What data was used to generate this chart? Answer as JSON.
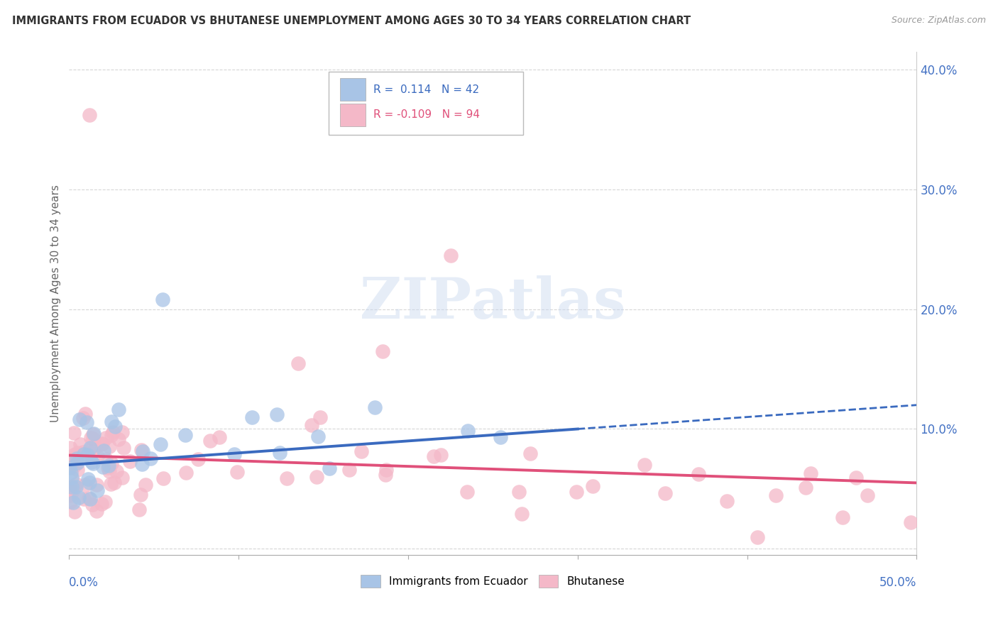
{
  "title": "IMMIGRANTS FROM ECUADOR VS BHUTANESE UNEMPLOYMENT AMONG AGES 30 TO 34 YEARS CORRELATION CHART",
  "source": "Source: ZipAtlas.com",
  "ylabel": "Unemployment Among Ages 30 to 34 years",
  "xlim": [
    0.0,
    0.5
  ],
  "ylim": [
    -0.005,
    0.415
  ],
  "yticks": [
    0.0,
    0.1,
    0.2,
    0.3,
    0.4
  ],
  "ytick_labels": [
    "",
    "10.0%",
    "20.0%",
    "30.0%",
    "40.0%"
  ],
  "series1_label": "Immigrants from Ecuador",
  "series2_label": "Bhutanese",
  "series1_color": "#a8c4e6",
  "series2_color": "#f4b8c8",
  "trendline1_color": "#3a6abf",
  "trendline2_color": "#e0507a",
  "background_color": "#ffffff",
  "grid_color": "#cccccc",
  "title_color": "#333333",
  "source_color": "#999999",
  "ylabel_color": "#666666",
  "tick_color": "#4472c4",
  "legend_r1_color": "#3a6abf",
  "legend_r2_color": "#e0507a"
}
